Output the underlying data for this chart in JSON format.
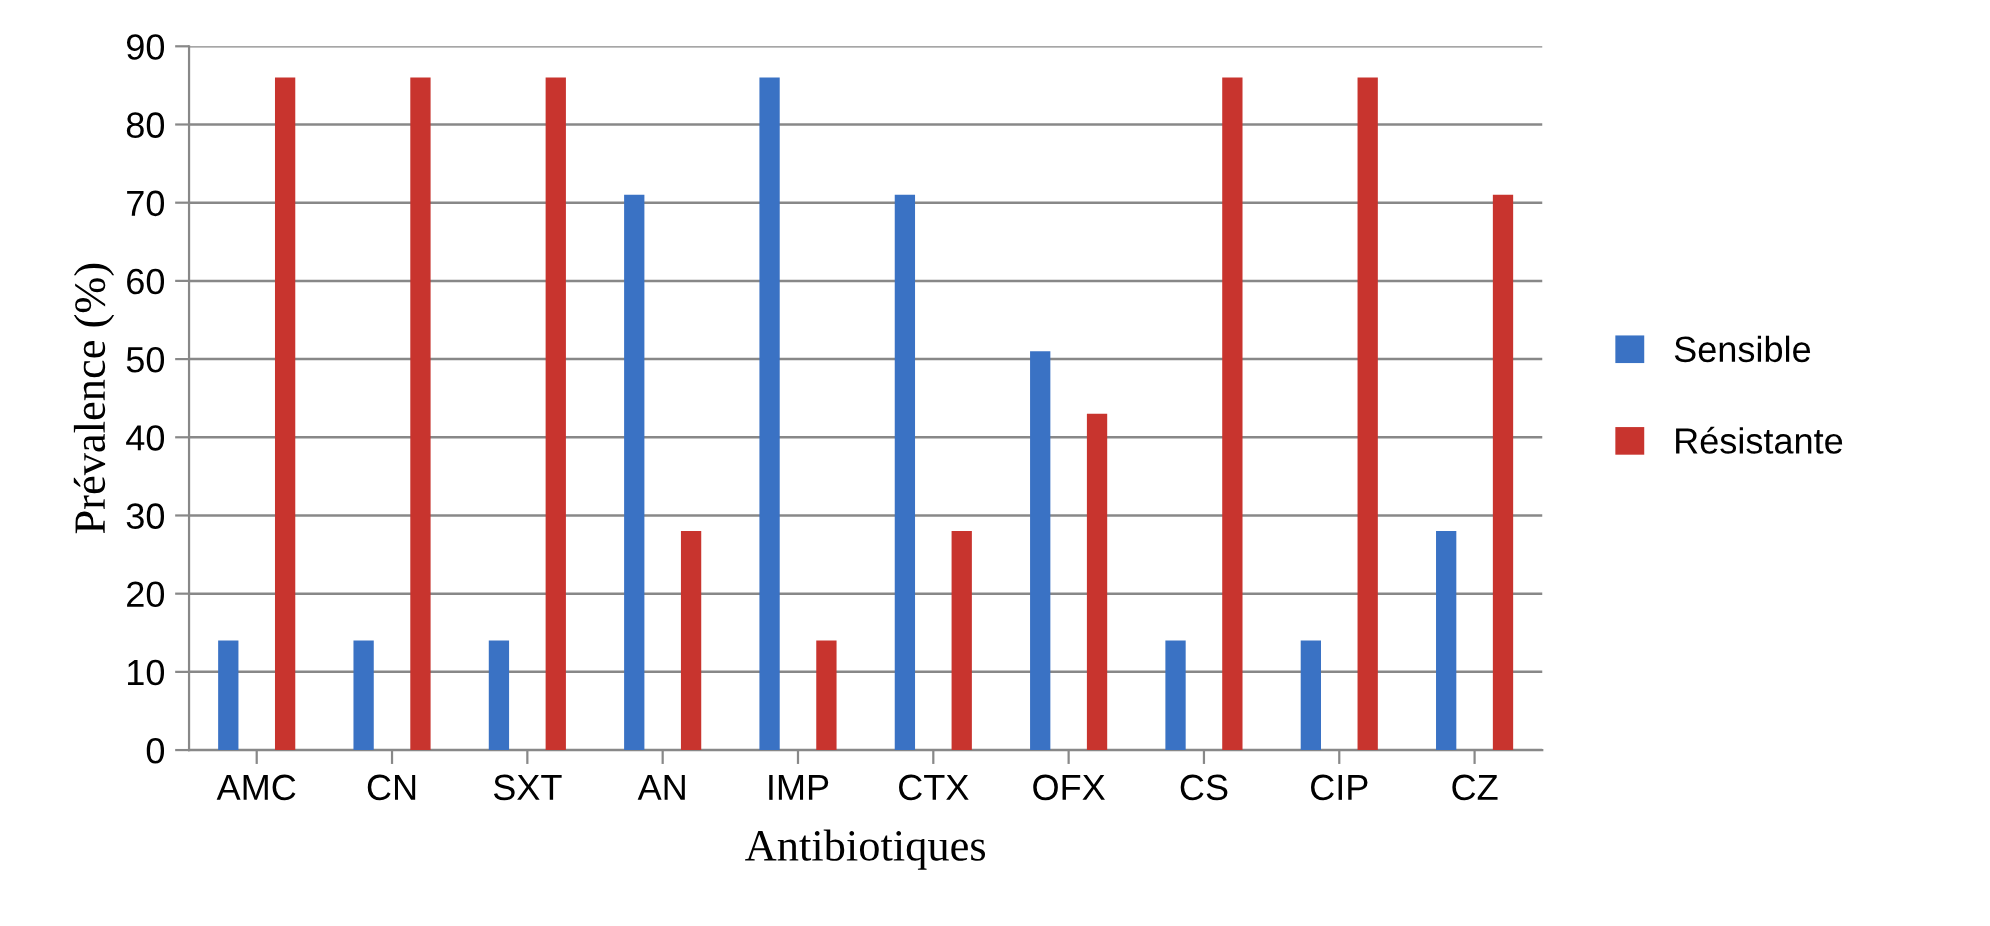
{
  "chart_data": {
    "type": "bar",
    "xlabel": "Antibiotiques",
    "ylabel": "Prévalence (%)",
    "categories": [
      "AMC",
      "CN",
      "SXT",
      "AN",
      "IMP",
      "CTX",
      "OFX",
      "CS",
      "CIP",
      "CZ"
    ],
    "series": [
      {
        "name": "Sensible",
        "color": "#3a72c4",
        "values": [
          14,
          14,
          14,
          71,
          86,
          71,
          51,
          14,
          14,
          28
        ]
      },
      {
        "name": "Résistante",
        "color": "#c8342e",
        "values": [
          86,
          86,
          86,
          28,
          14,
          28,
          43,
          86,
          86,
          71
        ]
      }
    ],
    "ylim": [
      0,
      90
    ],
    "yticks": [
      0,
      10,
      20,
      30,
      40,
      50,
      60,
      70,
      80,
      90
    ],
    "grid": "y",
    "legend": "right"
  }
}
